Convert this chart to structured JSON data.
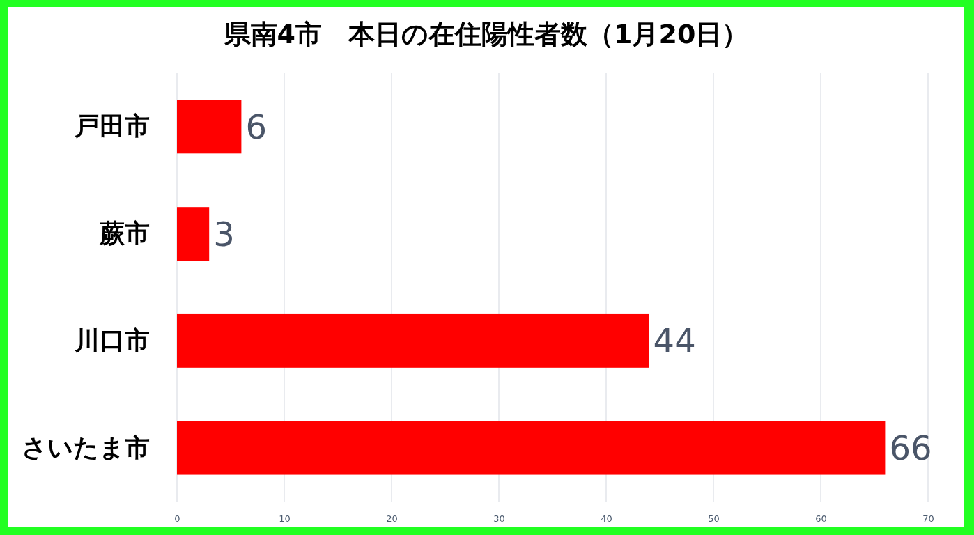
{
  "chart_data": {
    "type": "bar",
    "orientation": "horizontal",
    "title": "県南4市　本日の在住陽性者数（1月20日）",
    "categories": [
      "戸田市",
      "蕨市",
      "川口市",
      "さいたま市"
    ],
    "values": [
      6,
      3,
      44,
      66
    ],
    "color": "#ff0000",
    "xlim": [
      0,
      70
    ],
    "xticks": [
      0,
      10,
      20,
      30,
      40,
      50,
      60,
      70
    ],
    "grid": "x",
    "data_labels": true
  }
}
